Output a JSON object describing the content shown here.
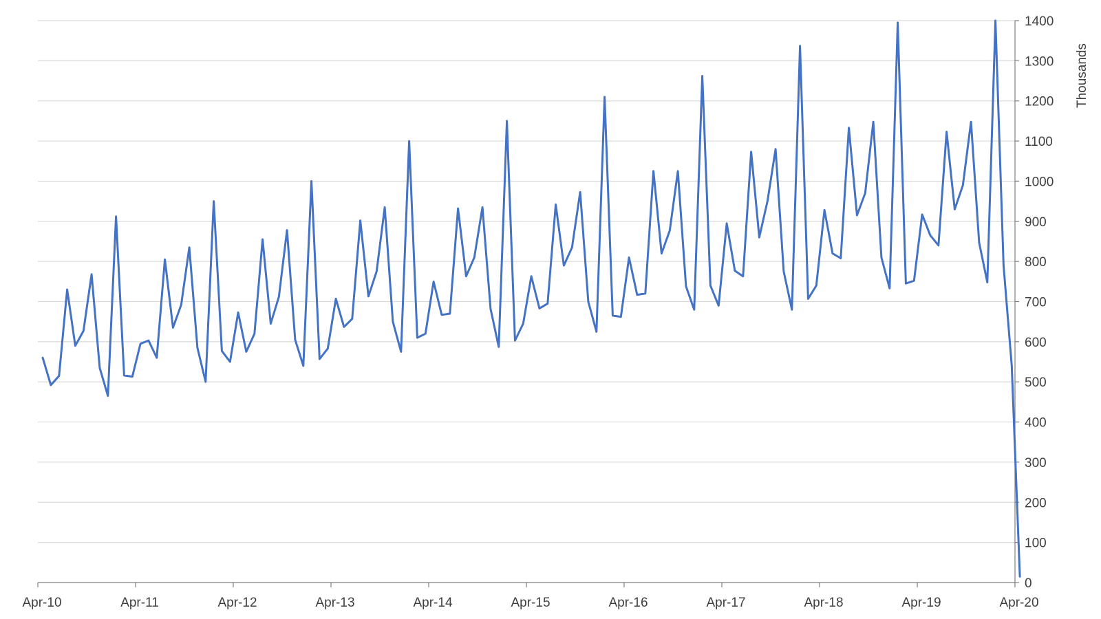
{
  "chart_data": {
    "type": "line",
    "title": "",
    "xlabel": "",
    "ylabel": "Thousands",
    "ylim": [
      0,
      1400
    ],
    "yticks": [
      0,
      100,
      200,
      300,
      400,
      500,
      600,
      700,
      800,
      900,
      1000,
      1100,
      1200,
      1300,
      1400
    ],
    "x_start": "Apr-10",
    "x_end": "Apr-20",
    "x_tick_labels": [
      "Apr-10",
      "Apr-11",
      "Apr-12",
      "Apr-13",
      "Apr-14",
      "Apr-15",
      "Apr-16",
      "Apr-17",
      "Apr-18",
      "Apr-19",
      "Apr-20"
    ],
    "grid": "horizontal",
    "legend": "none",
    "line_color": "#4472c4",
    "series": [
      {
        "values": [
          560,
          492,
          515,
          730,
          590,
          627,
          768,
          535,
          465,
          912,
          516,
          513,
          595,
          603,
          560,
          805,
          635,
          692,
          835,
          585,
          500,
          950,
          577,
          550,
          673,
          575,
          620,
          855,
          645,
          712,
          878,
          605,
          540,
          1000,
          557,
          583,
          707,
          637,
          657,
          902,
          713,
          775,
          935,
          650,
          575,
          1100,
          610,
          620,
          750,
          667,
          670,
          932,
          763,
          810,
          935,
          682,
          587,
          1150,
          603,
          645,
          763,
          683,
          695,
          942,
          790,
          835,
          973,
          700,
          625,
          1210,
          665,
          662,
          810,
          717,
          720,
          1025,
          820,
          877,
          1025,
          738,
          680,
          1262,
          740,
          690,
          895,
          777,
          763,
          1073,
          860,
          950,
          1080,
          775,
          680,
          1337,
          707,
          740,
          928,
          820,
          808,
          1133,
          915,
          970,
          1148,
          810,
          733,
          1395,
          745,
          752,
          917,
          865,
          840,
          1123,
          930,
          990,
          1148,
          847,
          748,
          1400,
          790,
          540,
          15
        ]
      }
    ]
  }
}
